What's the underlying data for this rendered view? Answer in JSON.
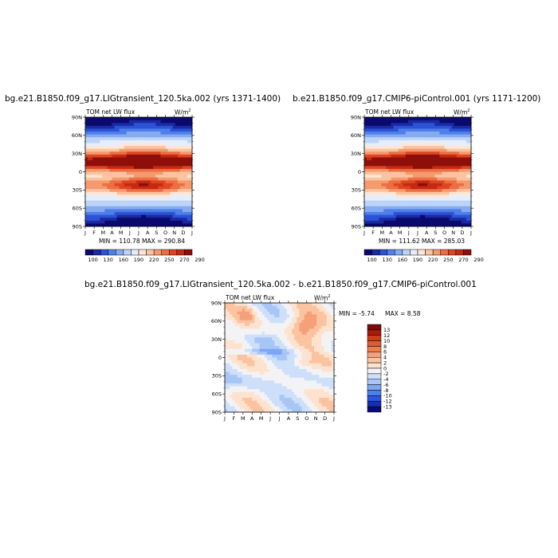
{
  "chart_data": [
    {
      "type": "heatmap",
      "title": "bg.e21.B1850.f09_g17.LIGtransient_120.5ka.002 (yrs 1371-1400)",
      "variable": "TOM net LW flux",
      "units": "W/m",
      "units_exp": "2",
      "x_ticks": [
        "J",
        "F",
        "M",
        "A",
        "M",
        "J",
        "J",
        "A",
        "S",
        "O",
        "N",
        "D",
        "J"
      ],
      "y_ticks": [
        "90N",
        "60N",
        "30N",
        "0",
        "30S",
        "60S",
        "90S"
      ],
      "stats": "MIN = 110.78 MAX = 290.84",
      "colorbar_labels": [
        "100",
        "130",
        "160",
        "190",
        "220",
        "250",
        "270",
        "290"
      ]
    },
    {
      "type": "heatmap",
      "title": "b.e21.B1850.f09_g17.CMIP6-piControl.001 (yrs 1171-1200)",
      "variable": "TOM net LW flux",
      "units": "W/m",
      "units_exp": "2",
      "x_ticks": [
        "J",
        "F",
        "M",
        "A",
        "M",
        "J",
        "J",
        "A",
        "S",
        "O",
        "N",
        "D",
        "J"
      ],
      "y_ticks": [
        "90N",
        "60N",
        "30N",
        "0",
        "30S",
        "60S",
        "90S"
      ],
      "stats": "MIN = 111.62 MAX = 285.03",
      "colorbar_labels": [
        "100",
        "130",
        "160",
        "190",
        "220",
        "250",
        "270",
        "290"
      ]
    },
    {
      "type": "heatmap",
      "title": "bg.e21.B1850.f09_g17.LIGtransient_120.5ka.002 - b.e21.B1850.f09_g17.CMIP6-piControl.001",
      "variable": "TOM net LW flux",
      "units": "W/m",
      "units_exp": "2",
      "x_ticks": [
        "J",
        "F",
        "M",
        "A",
        "M",
        "J",
        "J",
        "A",
        "S",
        "O",
        "N",
        "D",
        "J"
      ],
      "y_ticks": [
        "90N",
        "60N",
        "30N",
        "0",
        "30S",
        "60S",
        "90S"
      ],
      "stats_min": "MIN =  -5.74",
      "stats_max": "MAX =   8.58",
      "colorbar_labels": [
        "13",
        "12",
        "10",
        "8",
        "6",
        "4",
        "2",
        "0",
        "-2",
        "-4",
        "-6",
        "-8",
        "-10",
        "-12",
        "-13"
      ]
    }
  ],
  "colors": {
    "abs_scale": [
      "#0a0a6e",
      "#1a2aa0",
      "#2c52d6",
      "#4f7fe8",
      "#86abf2",
      "#bcd4f7",
      "#e6eefb",
      "#fde6d6",
      "#fbc4a0",
      "#f59a6e",
      "#ec6e43",
      "#de4523",
      "#c42a10",
      "#8e0f0a"
    ],
    "diff_scale": [
      "#0a0a7a",
      "#1430b4",
      "#2a55e0",
      "#4c7ff0",
      "#7ea6f4",
      "#a7c6f7",
      "#cddff9",
      "#f3f3f6",
      "#fde3cf",
      "#fbc3a0",
      "#f6a079",
      "#f07c52",
      "#e55a2f",
      "#d03c18",
      "#a81a0a",
      "#7a0c08"
    ]
  }
}
